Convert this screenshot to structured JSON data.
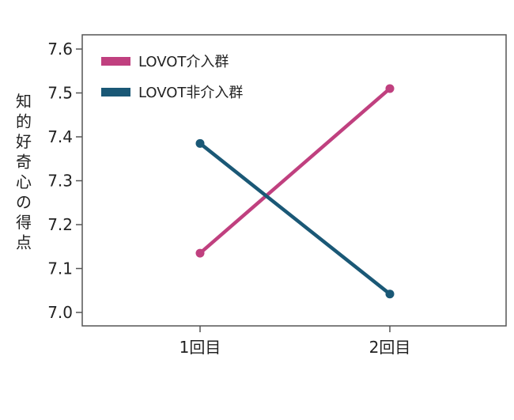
{
  "chart_data": {
    "type": "line",
    "title": "",
    "xlabel": "",
    "ylabel": "知的好奇心の得点",
    "categories": [
      "1回目",
      "2回目"
    ],
    "ylim": [
      7.0,
      7.6
    ],
    "yticks": [
      "7.0",
      "7.1",
      "7.2",
      "7.3",
      "7.4",
      "7.5",
      "7.6"
    ],
    "grid": false,
    "legend_position": "top-left",
    "series": [
      {
        "name": "LOVOT介入群",
        "color": "#c0407f",
        "values": [
          7.135,
          7.51
        ]
      },
      {
        "name": "LOVOT非介入群",
        "color": "#1a5876",
        "values": [
          7.385,
          7.042
        ]
      }
    ]
  }
}
